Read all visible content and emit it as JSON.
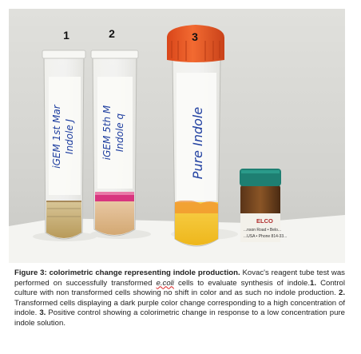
{
  "photo": {
    "tube_numbers": [
      "1",
      "2",
      "3"
    ],
    "tube1_label": [
      "iGEM 1st Mar",
      "Indole J"
    ],
    "tube2_label": [
      "iGEM 5th M",
      "Indole q"
    ],
    "tube3_label": [
      "Pure Indole"
    ],
    "bottle_label": [
      "ELCO",
      "...nson Road • Belo...",
      "...USA • Phone 814-33..."
    ]
  },
  "caption": {
    "title": "Figure 3: colorimetric change representing indole production.",
    "s1a": " Kovac's reagent tube test was performed on successfully transformed ",
    "ecoli": "e.coli",
    "s1b": " cells to evaluate synthesis of indole.",
    "n1": "1.",
    "s2": " Control culture with non transformed cells showing no shift in color and as such no indole production. ",
    "n2": "2.",
    "s3": " Transformed cells displaying a dark purple color change corresponding to a high concentration of indole. ",
    "n3": "3.",
    "s4": " Positive control showing a colorimetric change in response to a low concentration pure indole solution."
  },
  "colors": {
    "background_wall": "#d9d9d6",
    "tube1_liquid": "#c9b27a",
    "tube2_pink_ring": "#d8357f",
    "tube3_liquid": "#f3c62c",
    "cap3": "#e85a23",
    "bottle_cap": "#1e7f72"
  }
}
